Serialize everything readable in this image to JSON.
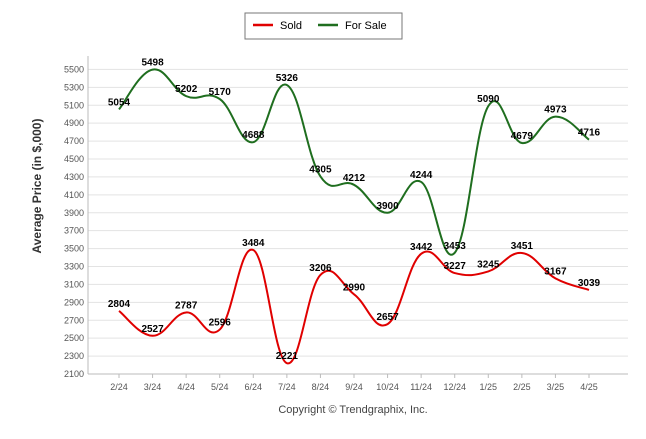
{
  "chart_data": {
    "type": "line",
    "title": "",
    "xlabel": "",
    "ylabel": "Average Price (in $,000)",
    "credit": "Copyright © Trendgraphix, Inc.",
    "categories": [
      "2/24",
      "3/24",
      "4/24",
      "5/24",
      "6/24",
      "7/24",
      "8/24",
      "9/24",
      "10/24",
      "11/24",
      "12/24",
      "1/25",
      "2/25",
      "3/25",
      "4/25"
    ],
    "yticks": [
      2100,
      2300,
      2500,
      2700,
      2900,
      3100,
      3300,
      3500,
      3700,
      3900,
      4100,
      4300,
      4500,
      4700,
      4900,
      5100,
      5300,
      5500
    ],
    "ylim": [
      2100,
      5650
    ],
    "grid": true,
    "legend": "top-center",
    "series": [
      {
        "name": "Sold",
        "color": "#e00000",
        "values": [
          2804,
          2527,
          2787,
          2596,
          3484,
          2221,
          3206,
          2990,
          2657,
          3442,
          3227,
          3245,
          3451,
          3167,
          3039
        ]
      },
      {
        "name": "For Sale",
        "color": "#1f6e1f",
        "values": [
          5054,
          5498,
          5202,
          5170,
          4688,
          5326,
          4305,
          4212,
          3900,
          4244,
          3453,
          5090,
          4679,
          4973,
          4716
        ]
      }
    ]
  }
}
